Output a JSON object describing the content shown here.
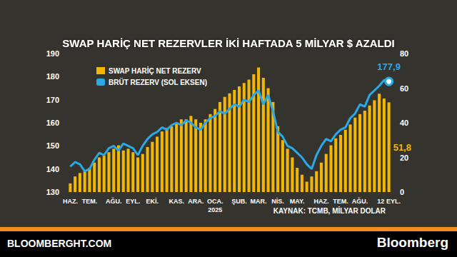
{
  "chart_data": {
    "type": "bar",
    "title": "SWAP HARİÇ NET REZERVLER İKİ HAFTADA 5 MİLYAR $ AZALDI",
    "source": "KAYNAK: TCMB, MİLYAR DOLAR",
    "footer": {
      "left": "BLOOMBERGHT.COM",
      "right": "Bloomberg"
    },
    "annotations": [
      {
        "text": "2025",
        "x": "OCA."
      }
    ],
    "categories": [
      "HAZ.",
      null,
      null,
      null,
      "TEM.",
      null,
      null,
      null,
      null,
      "AĞU.",
      null,
      null,
      null,
      "EYL.",
      null,
      null,
      null,
      "EKİ.",
      null,
      null,
      null,
      null,
      "KAS.",
      null,
      null,
      null,
      "ARA.",
      null,
      null,
      null,
      "OCA.",
      null,
      null,
      null,
      null,
      "ŞUB.",
      null,
      null,
      null,
      "MAR.",
      null,
      null,
      null,
      "NİS.",
      null,
      null,
      null,
      "MAY.",
      null,
      null,
      null,
      null,
      "HAZ.",
      null,
      null,
      null,
      "TEM.",
      null,
      null,
      null,
      "AĞU.",
      null,
      null,
      null,
      null,
      null,
      "12 EYL."
    ],
    "series": [
      {
        "name": "SWAP HARİÇ NET REZERV",
        "type": "bar",
        "axis": "y2",
        "color": "#f2b705",
        "values": [
          5,
          9,
          11,
          12,
          14,
          17,
          20,
          21,
          23,
          25,
          27,
          24,
          25,
          23,
          20,
          22,
          26,
          29,
          32,
          35,
          37,
          38,
          40,
          42,
          42,
          44,
          42,
          40,
          42,
          45,
          48,
          52,
          55,
          57,
          59,
          61,
          63,
          65,
          68,
          72,
          66,
          60,
          52,
          38,
          30,
          25,
          20,
          14,
          10,
          6,
          9,
          12,
          17,
          22,
          27,
          31,
          33,
          36,
          39,
          43,
          45,
          47,
          50,
          53,
          56.8,
          54,
          51.8
        ],
        "value_labels": [
          null,
          null,
          null,
          null,
          null,
          null,
          null,
          null,
          null,
          null,
          null,
          null,
          null,
          null,
          null,
          null,
          null,
          null,
          null,
          null,
          null,
          null,
          null,
          null,
          null,
          null,
          null,
          null,
          null,
          null,
          null,
          null,
          null,
          null,
          null,
          null,
          null,
          null,
          null,
          null,
          null,
          null,
          null,
          null,
          null,
          null,
          null,
          null,
          null,
          null,
          null,
          null,
          null,
          null,
          null,
          null,
          null,
          null,
          null,
          null,
          null,
          null,
          null,
          null,
          null,
          null,
          "51,8"
        ]
      },
      {
        "name": "BRÜT REZERV (SOL EKSEN)",
        "type": "line",
        "color": "#2aa9e6",
        "values": [
          141,
          143,
          142,
          139,
          140,
          144,
          147,
          146,
          149,
          150,
          148,
          151,
          150,
          149,
          146,
          150,
          153,
          155,
          156,
          158,
          157,
          159,
          160,
          159,
          161,
          160,
          158,
          157,
          160,
          162,
          163,
          165,
          164,
          166,
          168,
          167,
          170,
          169,
          172,
          174,
          168,
          172,
          165,
          156,
          154,
          150,
          149,
          147,
          145,
          142,
          140,
          146,
          150,
          153,
          152,
          155,
          157,
          158,
          162,
          164,
          168,
          167,
          172,
          174,
          176,
          178.5,
          177.9
        ],
        "value_labels": [
          null,
          null,
          null,
          null,
          null,
          null,
          null,
          null,
          null,
          null,
          null,
          null,
          null,
          null,
          null,
          null,
          null,
          null,
          null,
          null,
          null,
          null,
          null,
          null,
          null,
          null,
          null,
          null,
          null,
          null,
          null,
          null,
          null,
          null,
          null,
          null,
          null,
          null,
          null,
          null,
          null,
          null,
          null,
          null,
          null,
          null,
          null,
          null,
          null,
          null,
          null,
          null,
          null,
          null,
          null,
          null,
          null,
          null,
          null,
          null,
          null,
          null,
          null,
          null,
          null,
          null,
          "177,9"
        ]
      }
    ],
    "ylim": [
      130,
      190
    ],
    "yticks": [
      130,
      140,
      150,
      160,
      170,
      180,
      190
    ],
    "y2lim": [
      0,
      80
    ],
    "y2ticks": [
      0,
      20,
      40,
      60,
      80
    ],
    "grid": false,
    "legend": "top-left"
  }
}
